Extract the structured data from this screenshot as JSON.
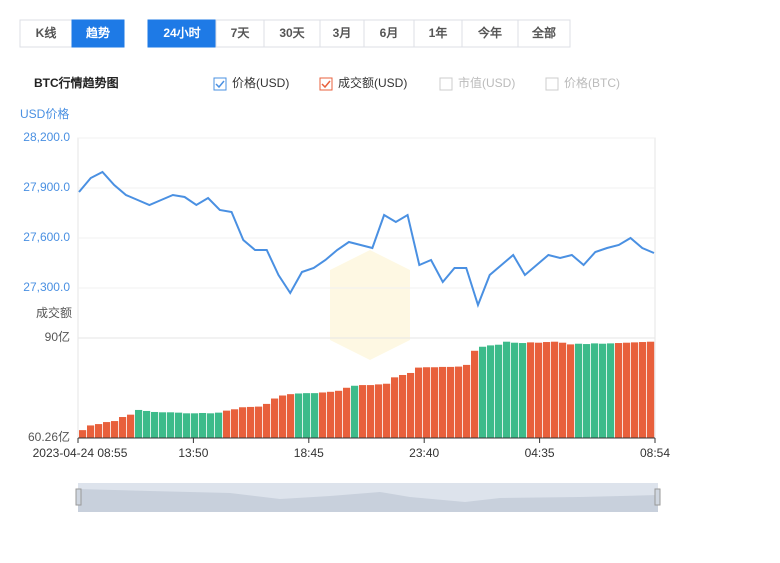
{
  "ui": {
    "view_tabs": [
      "K线",
      "趋势"
    ],
    "active_view": 1,
    "range_tabs": [
      "24小时",
      "7天",
      "30天",
      "3月",
      "6月",
      "1年",
      "今年",
      "全部"
    ],
    "active_range": 0,
    "heading": "BTC行情趋势图",
    "legend": [
      {
        "label": "价格(USD)",
        "color": "#4a90e2",
        "checked": true
      },
      {
        "label": "成交额(USD)",
        "color": "#e8603c",
        "checked": true
      },
      {
        "label": "市值(USD)",
        "color": "#cccccc",
        "checked": false
      },
      {
        "label": "价格(BTC)",
        "color": "#cccccc",
        "checked": false
      }
    ]
  },
  "chart_data": [
    {
      "type": "line",
      "y_label": "USD价格",
      "color": "#4a90e2",
      "ylim": [
        27000,
        28200
      ],
      "yticks": [
        {
          "value": 28200,
          "label": "28,200.0"
        },
        {
          "value": 27900,
          "label": "27,900.0"
        },
        {
          "value": 27600,
          "label": "27,600.0"
        },
        {
          "value": 27300,
          "label": "27,300.0"
        }
      ],
      "grid": true,
      "values": [
        27876,
        27960,
        27996,
        27918,
        27858,
        27828,
        27798,
        27828,
        27858,
        27846,
        27798,
        27840,
        27768,
        27756,
        27588,
        27528,
        27528,
        27378,
        27270,
        27396,
        27420,
        27468,
        27528,
        27576,
        27558,
        27540,
        27738,
        27696,
        27738,
        27438,
        27468,
        27336,
        27420,
        27420,
        27198,
        27378,
        27438,
        27498,
        27378,
        27438,
        27498,
        27480,
        27498,
        27438,
        27516,
        27540,
        27558,
        27600,
        27540,
        27510
      ]
    },
    {
      "type": "bar",
      "y_label": "成交额",
      "ylim": [
        60.26,
        90
      ],
      "yticks": [
        {
          "value": 60.26,
          "label": "60.26亿"
        },
        {
          "value": 90,
          "label": "90亿"
        }
      ],
      "xticks": [
        "2023-04-24 08:55",
        "13:50",
        "18:45",
        "23:40",
        "04:35",
        "08:54"
      ],
      "values": [
        62.6,
        64.0,
        64.4,
        65.0,
        65.3,
        66.5,
        67.2,
        68.6,
        68.3,
        68.0,
        67.9,
        67.9,
        67.8,
        67.6,
        67.6,
        67.7,
        67.6,
        67.8,
        68.4,
        68.8,
        69.4,
        69.5,
        69.6,
        70.4,
        72.0,
        72.9,
        73.3,
        73.5,
        73.6,
        73.6,
        73.8,
        74.0,
        74.3,
        75.2,
        75.8,
        76.0,
        76.0,
        76.2,
        76.4,
        78.3,
        79.0,
        79.6,
        81.2,
        81.3,
        81.3,
        81.4,
        81.4,
        81.5,
        82.0,
        86.2,
        87.4,
        87.8,
        88.0,
        88.9,
        88.6,
        88.5,
        88.7,
        88.6,
        88.8,
        88.9,
        88.6,
        88.1,
        88.3,
        88.2,
        88.4,
        88.3,
        88.4,
        88.5,
        88.6,
        88.7,
        88.8,
        88.9
      ],
      "colors": [
        "#e8603c",
        "#e8603c",
        "#e8603c",
        "#e8603c",
        "#e8603c",
        "#e8603c",
        "#e8603c",
        "#3dbb8a",
        "#3dbb8a",
        "#3dbb8a",
        "#3dbb8a",
        "#3dbb8a",
        "#3dbb8a",
        "#3dbb8a",
        "#3dbb8a",
        "#3dbb8a",
        "#3dbb8a",
        "#3dbb8a",
        "#e8603c",
        "#e8603c",
        "#e8603c",
        "#e8603c",
        "#e8603c",
        "#e8603c",
        "#e8603c",
        "#e8603c",
        "#e8603c",
        "#3dbb8a",
        "#3dbb8a",
        "#3dbb8a",
        "#e8603c",
        "#e8603c",
        "#e8603c",
        "#e8603c",
        "#3dbb8a",
        "#e8603c",
        "#e8603c",
        "#e8603c",
        "#e8603c",
        "#e8603c",
        "#e8603c",
        "#e8603c",
        "#e8603c",
        "#e8603c",
        "#e8603c",
        "#e8603c",
        "#e8603c",
        "#e8603c",
        "#e8603c",
        "#e8603c",
        "#3dbb8a",
        "#3dbb8a",
        "#3dbb8a",
        "#3dbb8a",
        "#3dbb8a",
        "#3dbb8a",
        "#e8603c",
        "#e8603c",
        "#e8603c",
        "#e8603c",
        "#e8603c",
        "#e8603c",
        "#3dbb8a",
        "#3dbb8a",
        "#3dbb8a",
        "#3dbb8a",
        "#3dbb8a",
        "#e8603c",
        "#e8603c",
        "#e8603c",
        "#e8603c",
        "#e8603c"
      ]
    }
  ]
}
